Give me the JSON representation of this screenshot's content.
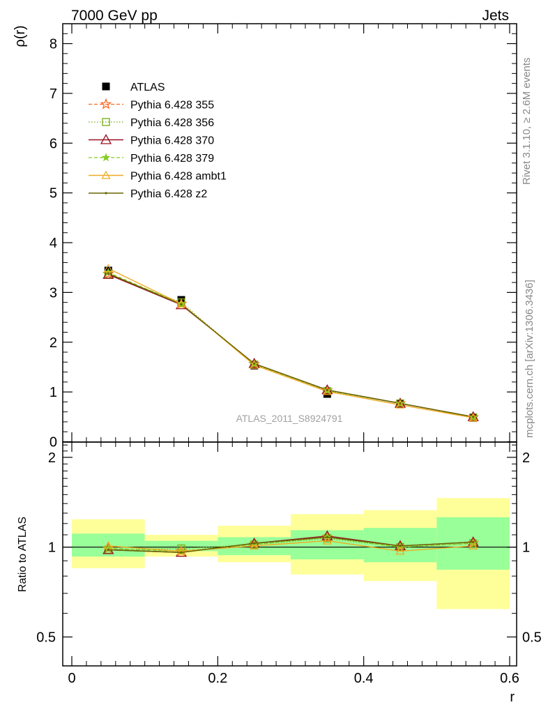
{
  "header": {
    "left": "7000 GeV pp",
    "right": "Jets"
  },
  "side_labels": {
    "rivet": "Rivet 3.1.10, ≥ 2.6M events",
    "source": "mcplots.cern.ch [arXiv:1306.3436]"
  },
  "watermark": "ATLAS_2011_S8924791",
  "colors": {
    "atlas": "#000000",
    "p355": "#ff6622",
    "p356": "#77aa11",
    "p370": "#991122",
    "p379": "#88cc22",
    "ambt1": "#eeaa22",
    "z2": "#666600",
    "band_inner": "#99ff99",
    "band_outer": "#ffff99"
  },
  "chart_data": [
    {
      "type": "line",
      "panel": "main",
      "ylabel": "ρ(r)",
      "xlim": [
        0,
        0.6
      ],
      "ylim": [
        0,
        8.4
      ],
      "yticks": [
        "0",
        "1",
        "2",
        "3",
        "4",
        "5",
        "6",
        "7",
        "8"
      ],
      "x": [
        0.05,
        0.15,
        0.25,
        0.35,
        0.45,
        0.55
      ],
      "series": [
        {
          "name": "ATLAS",
          "values": [
            3.44,
            2.85,
            1.53,
            0.96,
            0.76,
            0.48
          ]
        },
        {
          "name": "Pythia 6.428 355",
          "values": [
            3.37,
            2.77,
            1.56,
            1.03,
            0.77,
            0.49
          ]
        },
        {
          "name": "Pythia 6.428 356",
          "values": [
            3.36,
            2.8,
            1.55,
            1.02,
            0.77,
            0.49
          ]
        },
        {
          "name": "Pythia 6.428 370",
          "values": [
            3.36,
            2.75,
            1.57,
            1.04,
            0.77,
            0.5
          ]
        },
        {
          "name": "Pythia 6.428 379",
          "values": [
            3.4,
            2.77,
            1.56,
            1.03,
            0.77,
            0.49
          ]
        },
        {
          "name": "Pythia 6.428 ambt1",
          "values": [
            3.48,
            2.77,
            1.54,
            1.01,
            0.74,
            0.48
          ]
        },
        {
          "name": "Pythia 6.428 z2",
          "values": [
            3.38,
            2.76,
            1.57,
            1.04,
            0.77,
            0.5
          ]
        }
      ]
    },
    {
      "type": "line",
      "panel": "ratio",
      "ylabel": "Ratio to ATLAS",
      "xlabel": "r",
      "log_y": true,
      "ylim": [
        0.4,
        2.25
      ],
      "yticks": [
        "0.5",
        "1",
        "2"
      ],
      "xticks": [
        "0",
        "0.2",
        "0.4",
        "0.6"
      ],
      "x": [
        0.05,
        0.15,
        0.25,
        0.35,
        0.45,
        0.55
      ],
      "bins": [
        [
          0,
          0.1
        ],
        [
          0.1,
          0.2
        ],
        [
          0.2,
          0.3
        ],
        [
          0.3,
          0.4
        ],
        [
          0.4,
          0.5
        ],
        [
          0.5,
          0.6
        ]
      ],
      "band_inner": [
        [
          0.93,
          1.11
        ],
        [
          0.97,
          1.05
        ],
        [
          0.94,
          1.08
        ],
        [
          0.91,
          1.14
        ],
        [
          0.89,
          1.16
        ],
        [
          0.84,
          1.26
        ]
      ],
      "band_outer": [
        [
          0.85,
          1.24
        ],
        [
          0.93,
          1.1
        ],
        [
          0.89,
          1.18
        ],
        [
          0.81,
          1.29
        ],
        [
          0.77,
          1.33
        ],
        [
          0.62,
          1.46
        ]
      ],
      "series": [
        {
          "name": "Pythia 6.428 355",
          "values": [
            0.99,
            0.97,
            1.02,
            1.08,
            1.0,
            1.03
          ]
        },
        {
          "name": "Pythia 6.428 356",
          "values": [
            0.98,
            0.99,
            1.02,
            1.07,
            1.0,
            1.03
          ]
        },
        {
          "name": "Pythia 6.428 370",
          "values": [
            0.98,
            0.96,
            1.03,
            1.09,
            1.01,
            1.04
          ]
        },
        {
          "name": "Pythia 6.428 379",
          "values": [
            0.99,
            0.97,
            1.02,
            1.08,
            1.0,
            1.03
          ]
        },
        {
          "name": "Pythia 6.428 ambt1",
          "values": [
            1.01,
            0.97,
            1.01,
            1.05,
            0.97,
            1.01
          ]
        },
        {
          "name": "Pythia 6.428 z2",
          "values": [
            0.98,
            0.96,
            1.03,
            1.08,
            1.01,
            1.04
          ]
        }
      ]
    }
  ]
}
